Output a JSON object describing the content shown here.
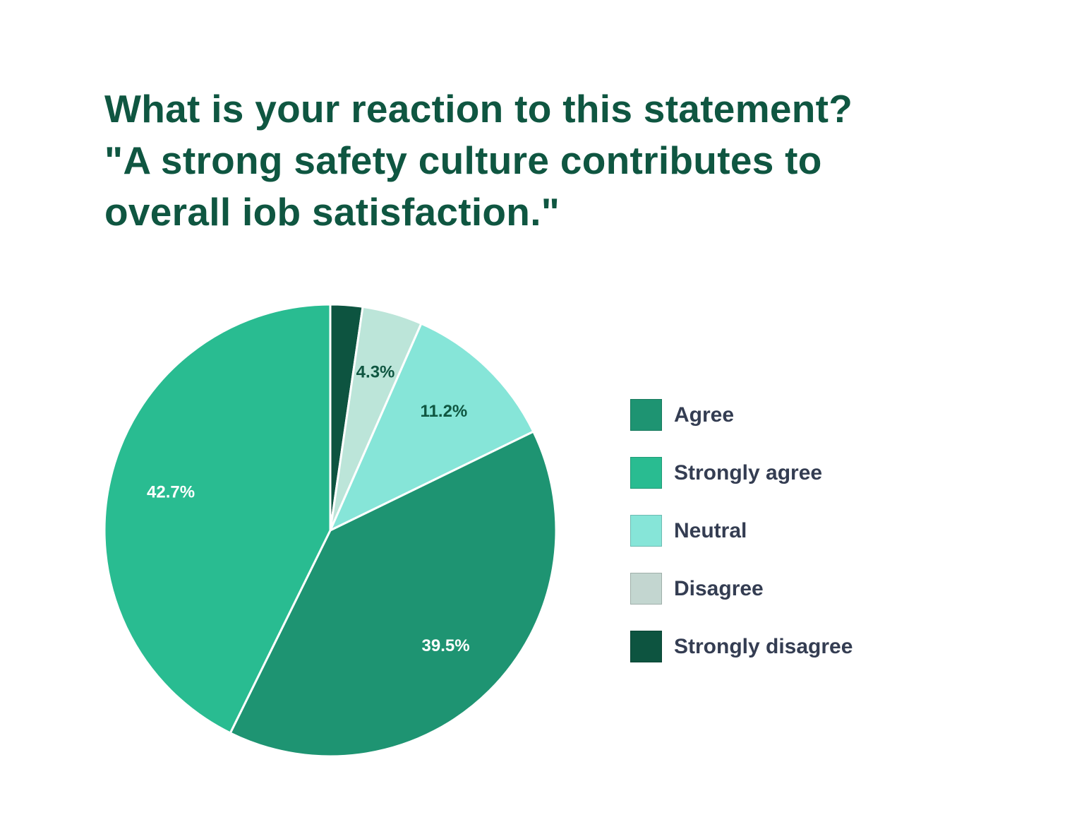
{
  "chart_data": {
    "type": "pie",
    "title_lines": [
      "What is your reaction to this statement?",
      "\"A strong safety culture contributes to",
      "overall iob satisfaction.\""
    ],
    "slices": [
      {
        "name": "Strongly disagree",
        "value": 2.3,
        "label": "",
        "color": "#0d5440",
        "label_color": "#ffffff"
      },
      {
        "name": "Disagree",
        "value": 4.3,
        "label": "4.3%",
        "color": "#bce5d9",
        "label_color": "#0f5641"
      },
      {
        "name": "Neutral",
        "value": 11.2,
        "label": "11.2%",
        "color": "#86e5d8",
        "label_color": "#0f5641"
      },
      {
        "name": "Agree",
        "value": 39.5,
        "label": "39.5%",
        "color": "#1e9472",
        "label_color": "#ffffff"
      },
      {
        "name": "Strongly agree",
        "value": 42.7,
        "label": "42.7%",
        "color": "#29bc91",
        "label_color": "#ffffff"
      }
    ],
    "legend": [
      {
        "label": "Agree",
        "color": "#1e9472"
      },
      {
        "label": "Strongly agree",
        "color": "#29bc91"
      },
      {
        "label": "Neutral",
        "color": "#86e5d8"
      },
      {
        "label": "Disagree",
        "color": "#c3d6d0"
      },
      {
        "label": "Strongly disagree",
        "color": "#0d5440"
      }
    ],
    "legend_position": "right",
    "start_angle": "12 o'clock, clockwise"
  }
}
